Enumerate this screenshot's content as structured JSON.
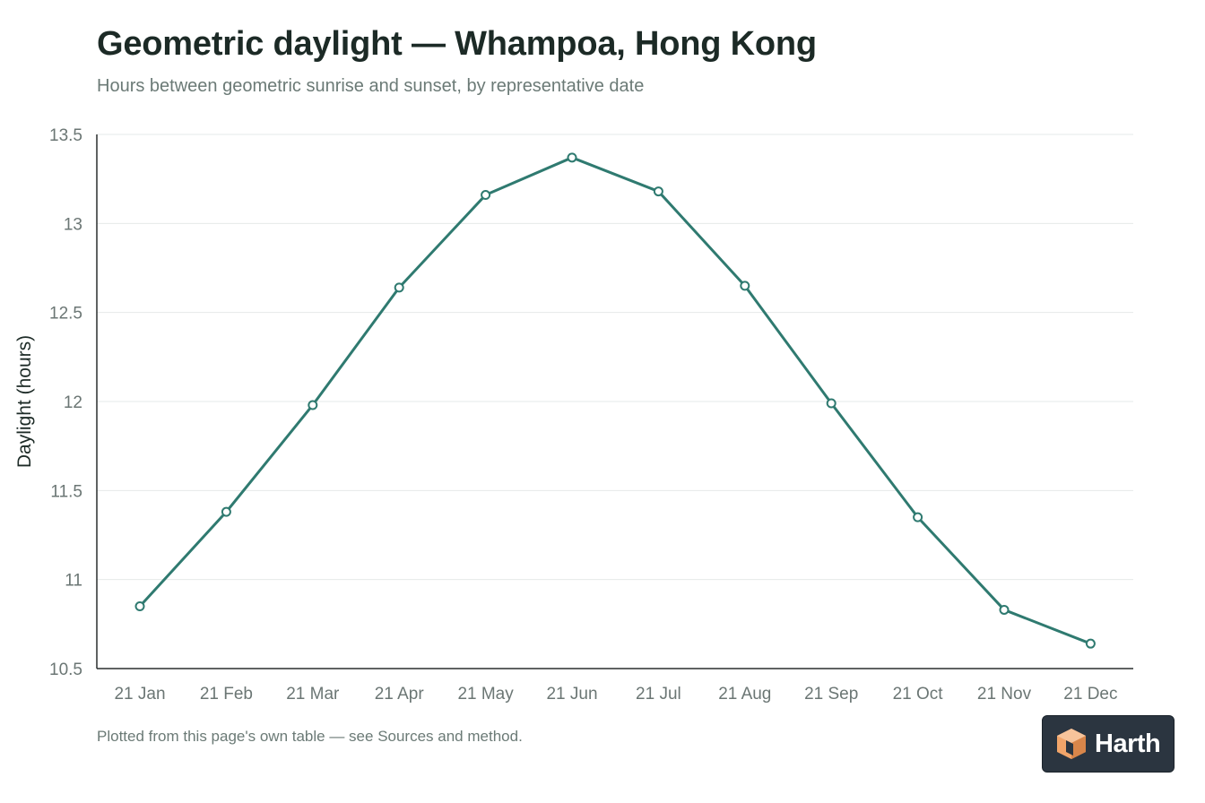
{
  "page": {
    "title": "Geometric daylight — Whampoa, Hong Kong",
    "subtitle": "Hours between geometric sunrise and sunset, by representative date",
    "footnote": "Plotted from this page's own table — see Sources and method.",
    "logo_text": "Harth"
  },
  "colors": {
    "line": "#2f7a70",
    "grid": "#e6e9e8",
    "axis": "#2a2f2e",
    "tick_text": "#6b7674",
    "ylabel_text": "#1c2a26",
    "logo_bg": "#2b3540",
    "logo_icon": "#f2a56a"
  },
  "icons": {
    "logo": "cube-logo-icon"
  },
  "chart_data": {
    "type": "line",
    "title": "Geometric daylight — Whampoa, Hong Kong",
    "subtitle": "Hours between geometric sunrise and sunset, by representative date",
    "xlabel": "",
    "ylabel": "Daylight (hours)",
    "categories": [
      "21 Jan",
      "21 Feb",
      "21 Mar",
      "21 Apr",
      "21 May",
      "21 Jun",
      "21 Jul",
      "21 Aug",
      "21 Sep",
      "21 Oct",
      "21 Nov",
      "21 Dec"
    ],
    "values": [
      10.85,
      11.38,
      11.98,
      12.64,
      13.16,
      13.37,
      13.18,
      12.65,
      11.99,
      11.35,
      10.83,
      10.64
    ],
    "ylim": [
      10.5,
      13.5
    ],
    "yticks": [
      10.5,
      11,
      11.5,
      12,
      12.5,
      13,
      13.5
    ],
    "ytick_labels": [
      "10.5",
      "11",
      "11.5",
      "12",
      "12.5",
      "13",
      "13.5"
    ],
    "grid": true,
    "legend": "none",
    "markers": "hollow-circle"
  }
}
